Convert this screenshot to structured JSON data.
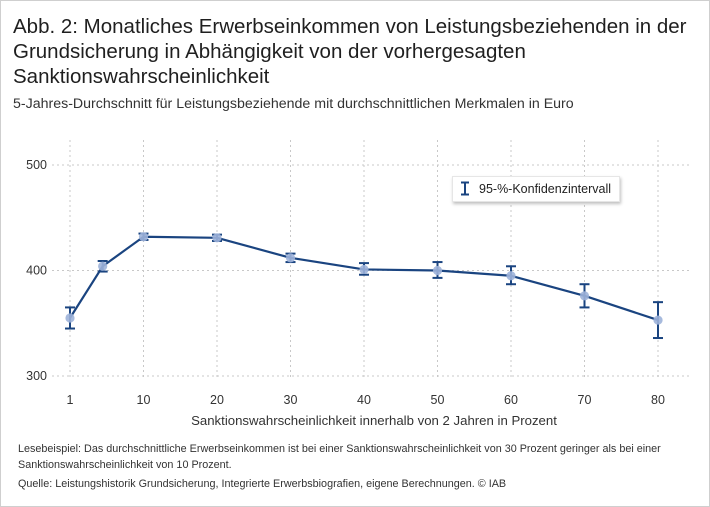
{
  "header": {
    "title": "Abb. 2: Monatliches Erwerbseinkommen von Leistungsbeziehenden in der Grundsicherung in Abhängigkeit von der vorhergesagten Sanktionswahrscheinlichkeit",
    "subtitle": "5-Jahres-Durchschnitt für Leistungsbeziehende mit durchschnittlichen Merkmalen in Euro"
  },
  "legend": {
    "label": "95-%-Konfidenzintervall"
  },
  "footer": {
    "note": "Lesebeispiel: Das durchschnittliche Erwerbseinkommen ist bei einer Sanktionswahrscheinlichkeit von 30 Prozent geringer als bei einer Sanktionswahrscheinlichkeit von 10 Prozent.",
    "source": "Quelle: Leistungshistorik Grundsicherung, Integrierte Erwerbsbiografien, eigene Berechnungen.  © IAB"
  },
  "colors": {
    "line": "#1a4480",
    "marker": "#9db3d9",
    "grid": "#c8c8c8"
  },
  "chart_data": {
    "type": "line",
    "title": "Monatliches Erwerbseinkommen von Leistungsbeziehenden in der Grundsicherung in Abhängigkeit von der vorhergesagten Sanktionswahrscheinlichkeit",
    "xlabel": "Sanktionswahrscheinlichkeit innerhalb von 2 Jahren in Prozent",
    "ylabel": "",
    "xlim": [
      1,
      80
    ],
    "ylim": [
      295,
      520
    ],
    "x_ticks": [
      1,
      10,
      20,
      30,
      40,
      50,
      60,
      70,
      80
    ],
    "y_ticks": [
      300,
      400,
      500
    ],
    "grid": true,
    "legend_position": "top-right",
    "series": [
      {
        "name": "Erwerbseinkommen",
        "x": [
          1,
          5,
          10,
          20,
          30,
          40,
          50,
          60,
          70,
          80
        ],
        "y": [
          355,
          404,
          432,
          431,
          412,
          401,
          400,
          395,
          376,
          353
        ],
        "lower": [
          345,
          399,
          429,
          428,
          408,
          396,
          393,
          387,
          365,
          336
        ],
        "upper": [
          365,
          409,
          435,
          434,
          416,
          407,
          408,
          404,
          387,
          370
        ]
      }
    ]
  }
}
